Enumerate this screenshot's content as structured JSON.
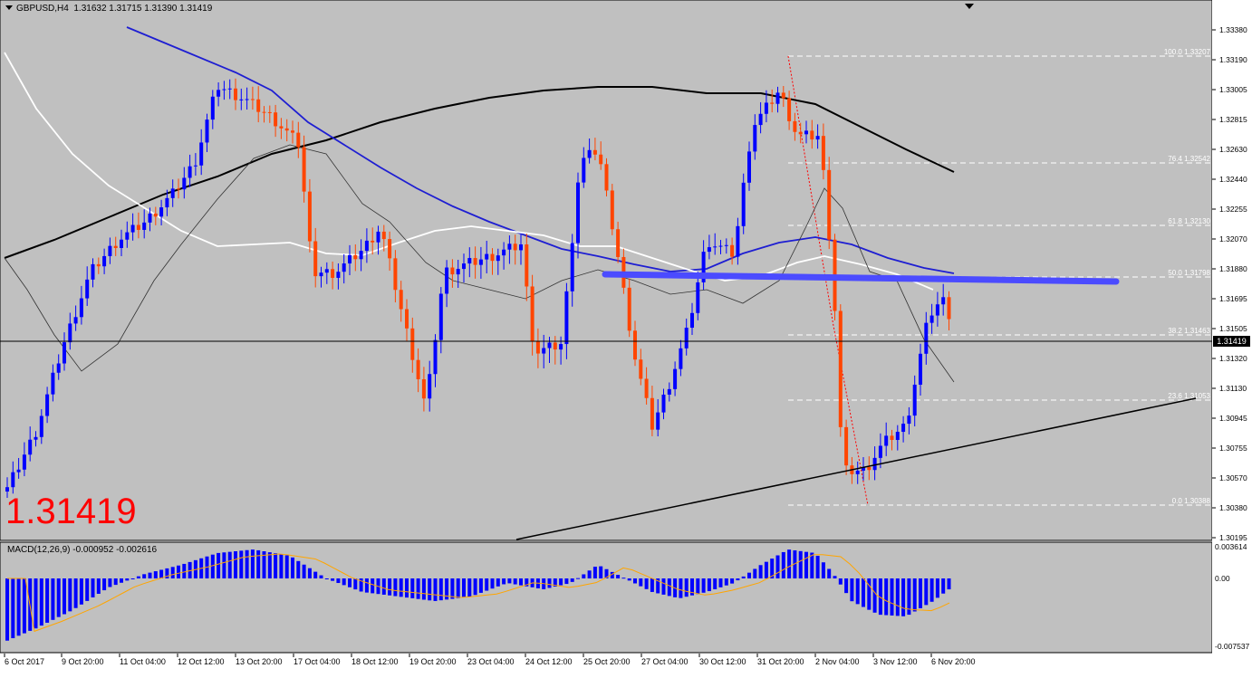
{
  "header": {
    "symbol": "GBPUSD,H4",
    "ohlc": "1.31632 1.31715 1.31390 1.31419"
  },
  "big_price": "1.31419",
  "current_price_label": "1.31419",
  "macd": {
    "label": "MACD(12,26,9) -0.000952 -0.002616",
    "axis_labels": [
      "0.003614",
      "0.00",
      "-0.007537"
    ]
  },
  "price_axis": [
    "1.33380",
    "1.33190",
    "1.33005",
    "1.32815",
    "1.32630",
    "1.32440",
    "1.32255",
    "1.32070",
    "1.31880",
    "1.31695",
    "1.31505",
    "1.31320",
    "1.31130",
    "1.30945",
    "1.30755",
    "1.30570",
    "1.30380",
    "1.30195"
  ],
  "fib_levels": [
    {
      "label": "100.0  1.33207"
    },
    {
      "label": "76.4  1.32542"
    },
    {
      "label": "61.8  1.32130"
    },
    {
      "label": "50.0  1.31798"
    },
    {
      "label": "38.2  1.31463"
    },
    {
      "label": "23.6  1.31053"
    },
    {
      "label": "0.0  1.30388"
    }
  ],
  "time_axis": [
    "6 Oct 2017",
    "9 Oct 20:00",
    "11 Oct 04:00",
    "12 Oct 12:00",
    "13 Oct 20:00",
    "17 Oct 04:00",
    "18 Oct 12:00",
    "19 Oct 20:00",
    "23 Oct 04:00",
    "24 Oct 12:00",
    "25 Oct 20:00",
    "27 Oct 04:00",
    "30 Oct 12:00",
    "31 Oct 20:00",
    "2 Nov 04:00",
    "3 Nov 12:00",
    "6 Nov 20:00"
  ],
  "colors": {
    "background": "#c0c0c0",
    "bull": "#0000ff",
    "bear": "#ff4500",
    "ma_slow": "#000000",
    "ma_mid": "#1e1ed2",
    "ma_white": "#ffffff",
    "resistance": "#4b4bff",
    "signal": "#ffa500"
  }
}
